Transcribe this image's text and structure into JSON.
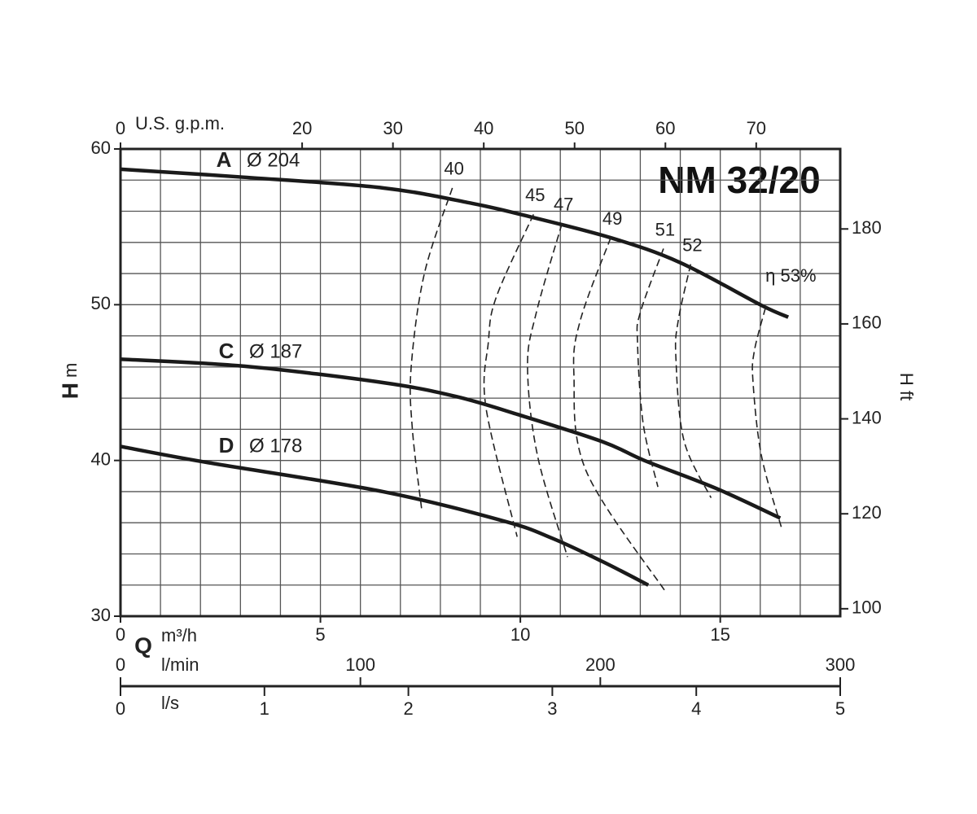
{
  "chart_data": {
    "type": "line",
    "title": "NM 32/20",
    "ylabel_symbol": "H",
    "ylabel_unit": "m",
    "y2label": "H ft",
    "xlabel_symbol": "Q",
    "xlabel_unit": "m³/h",
    "xlim": [
      0,
      18
    ],
    "xticks": [
      0,
      5,
      10,
      15
    ],
    "xgrid": [
      0,
      1,
      2,
      3,
      4,
      5,
      6,
      7,
      8,
      9,
      10,
      11,
      12,
      13,
      14,
      15,
      16,
      17,
      18
    ],
    "ylim": [
      30,
      60
    ],
    "yticks": [
      30,
      40,
      50,
      60
    ],
    "ygrid": [
      30,
      32,
      34,
      36,
      38,
      40,
      42,
      44,
      46,
      48,
      50,
      52,
      54,
      56,
      58,
      60
    ],
    "x2label": "U.S. g.p.m.",
    "x2lim": [
      0,
      79.25
    ],
    "x2ticks": [
      0,
      20,
      30,
      40,
      50,
      60,
      70
    ],
    "y2lim": [
      98.43,
      196.85
    ],
    "y2ticks": [
      100,
      120,
      140,
      160,
      180
    ],
    "x3label": "l/min",
    "x3lim": [
      0,
      300
    ],
    "x3ticks": [
      0,
      100,
      200,
      300
    ],
    "x4label": "l/s",
    "x4lim": [
      0,
      5
    ],
    "x4ticks": [
      0,
      1,
      2,
      3,
      4,
      5
    ],
    "series": [
      {
        "name": "A",
        "label": "Ø 204",
        "color": "#1a1a1a",
        "x": [
          0,
          3,
          6.56,
          8.8,
          10,
          12.26,
          14,
          16,
          16.7
        ],
        "values": [
          58.7,
          58.2,
          57.5,
          56.5,
          55.8,
          54.3,
          52.7,
          50.0,
          49.2
        ]
      },
      {
        "name": "C",
        "label": "Ø 187",
        "color": "#1a1a1a",
        "x": [
          0,
          3.1,
          6.56,
          8.4,
          10,
          12.06,
          13.1,
          14.9,
          16.5
        ],
        "values": [
          46.5,
          46.05,
          45.0,
          44.1,
          42.9,
          41.2,
          40.0,
          38.2,
          36.3
        ]
      },
      {
        "name": "D",
        "label": "Ø 178",
        "color": "#1a1a1a",
        "x": [
          0,
          2.1,
          6.56,
          9.6,
          10.8,
          12.06,
          13.2
        ],
        "values": [
          40.9,
          39.9,
          38.0,
          36.1,
          35.0,
          33.5,
          32.0
        ]
      }
    ],
    "efficiency_curves": [
      {
        "value": 40,
        "label": "40",
        "x": [
          8.3,
          7.6,
          7.27,
          7.3,
          7.54
        ],
        "values": [
          57.5,
          52,
          46,
          42,
          36.7
        ]
      },
      {
        "value": 45,
        "label": "45",
        "x": [
          10.33,
          9.4,
          9.2,
          9.14,
          9.92
        ],
        "values": [
          55.8,
          50.5,
          47.6,
          43.4,
          35.1
        ]
      },
      {
        "value": 47,
        "label": "47",
        "x": [
          11.04,
          10.4,
          10.18,
          10.43,
          11.18
        ],
        "values": [
          55.2,
          49.5,
          46.0,
          40.3,
          33.8
        ]
      },
      {
        "value": 49,
        "label": "49",
        "x": [
          12.26,
          11.5,
          11.34,
          11.65,
          13.65
        ],
        "values": [
          54.3,
          49,
          45.5,
          39.3,
          31.5
        ]
      },
      {
        "value": 51,
        "label": "51",
        "x": [
          13.58,
          13.0,
          12.93,
          13.07,
          13.44
        ],
        "values": [
          53.6,
          49.5,
          47.6,
          42.4,
          38.3
        ]
      },
      {
        "value": 52,
        "label": "52",
        "x": [
          14.26,
          13.95,
          13.89,
          14.09,
          14.77
        ],
        "values": [
          52.6,
          49,
          46.6,
          41.3,
          37.6
        ]
      },
      {
        "value": 53,
        "label": "η 53%",
        "x": [
          16.13,
          15.85,
          15.82,
          16.03,
          16.54
        ],
        "values": [
          49.8,
          47,
          45.0,
          40.3,
          35.6
        ]
      }
    ]
  }
}
